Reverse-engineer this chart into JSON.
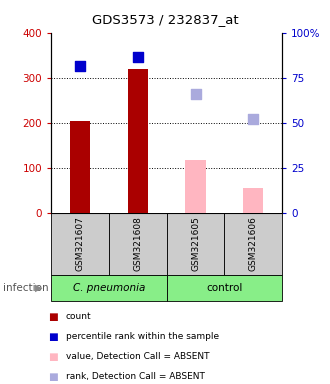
{
  "title": "GDS3573 / 232837_at",
  "samples": [
    "GSM321607",
    "GSM321608",
    "GSM321605",
    "GSM321606"
  ],
  "bar_values": [
    205,
    320,
    118,
    55
  ],
  "bar_present": [
    true,
    true,
    false,
    false
  ],
  "dot_blue_values": [
    325,
    345,
    null,
    null
  ],
  "dot_blue_absent_values": [
    null,
    null,
    263,
    208
  ],
  "ylim_left": [
    0,
    400
  ],
  "ylim_right": [
    0,
    100
  ],
  "yticks_left": [
    0,
    100,
    200,
    300,
    400
  ],
  "yticks_right": [
    0,
    25,
    50,
    75,
    100
  ],
  "ytick_labels_left": [
    "0",
    "100",
    "200",
    "300",
    "400"
  ],
  "ytick_labels_right": [
    "0",
    "25",
    "50",
    "75",
    "100%"
  ],
  "left_tick_color": "#CC0000",
  "right_tick_color": "#0000CC",
  "bar_color_present": "#AA0000",
  "bar_color_absent": "#FFB6C1",
  "dot_color_present": "#0000CC",
  "dot_color_absent": "#AAAADD",
  "bg_color": "#CCCCCC",
  "green_color": "#88EE88",
  "bar_width": 0.35,
  "dot_size": 50,
  "legend_labels": [
    "count",
    "percentile rank within the sample",
    "value, Detection Call = ABSENT",
    "rank, Detection Call = ABSENT"
  ],
  "legend_colors": [
    "#AA0000",
    "#0000CC",
    "#FFB6C1",
    "#AAAADD"
  ],
  "infection_label": "infection",
  "cpneumonia_label": "C. pneumonia",
  "control_label": "control"
}
